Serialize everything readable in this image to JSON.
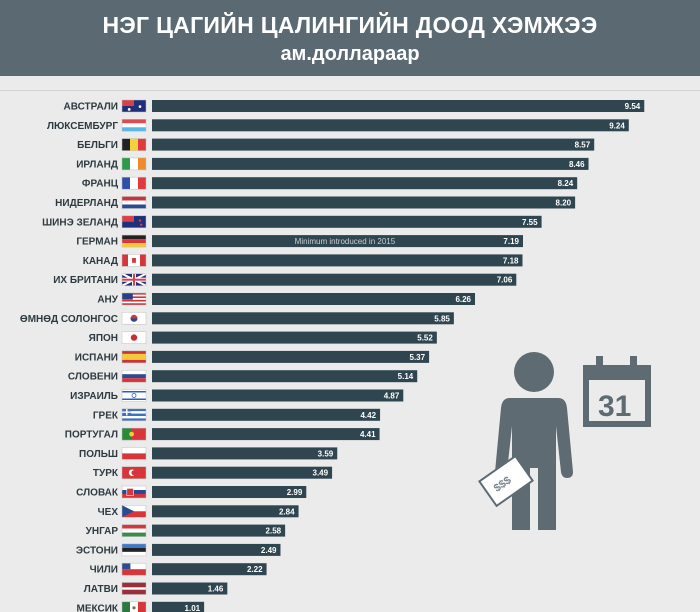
{
  "header": {
    "title": "НЭГ ЦАГИЙН ЦАЛИНГИЙН ДООД ХЭМЖЭЭ",
    "subtitle": "ам.доллараар"
  },
  "colors": {
    "header_bg": "#5b6a72",
    "bar": "#2f4550",
    "background": "#ebebeb",
    "illustration": "#5f6b72"
  },
  "illustration": {
    "calendar_number": "31",
    "money_text": "$$$",
    "icons": [
      "person-icon",
      "calendar-icon",
      "money-bill-icon"
    ]
  },
  "chart_data": {
    "type": "bar",
    "orientation": "horizontal",
    "title": "НЭГ ЦАГИЙН ЦАЛИНГИЙН ДООД ХЭМЖЭЭ",
    "subtitle": "ам.доллараар",
    "xlim": [
      0,
      10
    ],
    "grid": false,
    "categories": [
      {
        "name": "АВСТРАЛИ",
        "value": 9.54,
        "label": "9.54",
        "flag": "australia-flag-icon"
      },
      {
        "name": "ЛЮКСЕМБУРГ",
        "value": 9.24,
        "label": "9.24",
        "flag": "luxembourg-flag-icon"
      },
      {
        "name": "БЕЛЬГИ",
        "value": 8.57,
        "label": "8.57",
        "flag": "belgium-flag-icon"
      },
      {
        "name": "ИРЛАНД",
        "value": 8.46,
        "label": "8.46",
        "flag": "ireland-flag-icon"
      },
      {
        "name": "ФРАНЦ",
        "value": 8.24,
        "label": "8.24",
        "flag": "france-flag-icon"
      },
      {
        "name": "НИДЕРЛАНД",
        "value": 8.2,
        "label": "8.20",
        "flag": "netherlands-flag-icon"
      },
      {
        "name": "ШИНЭ ЗЕЛАНД",
        "value": 7.55,
        "label": "7.55",
        "flag": "new-zealand-flag-icon"
      },
      {
        "name": "ГЕРМАН",
        "value": 7.19,
        "label": "7.19",
        "flag": "germany-flag-icon"
      },
      {
        "name": "КАНАД",
        "value": 7.18,
        "label": "7.18",
        "flag": "canada-flag-icon"
      },
      {
        "name": "ИХ БРИТАНИ",
        "value": 7.06,
        "label": "7.06",
        "flag": "uk-flag-icon"
      },
      {
        "name": "АНУ",
        "value": 6.26,
        "label": "6.26",
        "flag": "usa-flag-icon"
      },
      {
        "name": "ӨМНӨД СОЛОНГОС",
        "value": 5.85,
        "label": "5.85",
        "flag": "south-korea-flag-icon"
      },
      {
        "name": "ЯПОН",
        "value": 5.52,
        "label": "5.52",
        "flag": "japan-flag-icon"
      },
      {
        "name": "ИСПАНИ",
        "value": 5.37,
        "label": "5.37",
        "flag": "spain-flag-icon"
      },
      {
        "name": "СЛОВЕНИ",
        "value": 5.14,
        "label": "5.14",
        "flag": "slovenia-flag-icon"
      },
      {
        "name": "ИЗРАИЛЬ",
        "value": 4.87,
        "label": "4.87",
        "flag": "israel-flag-icon"
      },
      {
        "name": "ГРЕК",
        "value": 4.42,
        "label": "4.42",
        "flag": "greece-flag-icon"
      },
      {
        "name": "ПОРТУГАЛ",
        "value": 4.41,
        "label": "4.41",
        "flag": "portugal-flag-icon"
      },
      {
        "name": "ПОЛЬШ",
        "value": 3.59,
        "label": "3.59",
        "flag": "poland-flag-icon"
      },
      {
        "name": "ТУРК",
        "value": 3.49,
        "label": "3.49",
        "flag": "turkey-flag-icon"
      },
      {
        "name": "СЛОВАК",
        "value": 2.99,
        "label": "2.99",
        "flag": "slovakia-flag-icon"
      },
      {
        "name": "ЧЕХ",
        "value": 2.84,
        "label": "2.84",
        "flag": "czech-flag-icon"
      },
      {
        "name": "УНГАР",
        "value": 2.58,
        "label": "2.58",
        "flag": "hungary-flag-icon"
      },
      {
        "name": "ЭСТОНИ",
        "value": 2.49,
        "label": "2.49",
        "flag": "estonia-flag-icon"
      },
      {
        "name": "ЧИЛИ",
        "value": 2.22,
        "label": "2.22",
        "flag": "chile-flag-icon"
      },
      {
        "name": "ЛАТВИ",
        "value": 1.46,
        "label": "1.46",
        "flag": "latvia-flag-icon"
      },
      {
        "name": "МЕКСИК",
        "value": 1.01,
        "label": "1.01",
        "flag": "mexico-flag-icon"
      }
    ],
    "annotations": [
      {
        "category": "ГЕРМАН",
        "text": "Minimum introduced in 2015"
      }
    ]
  }
}
